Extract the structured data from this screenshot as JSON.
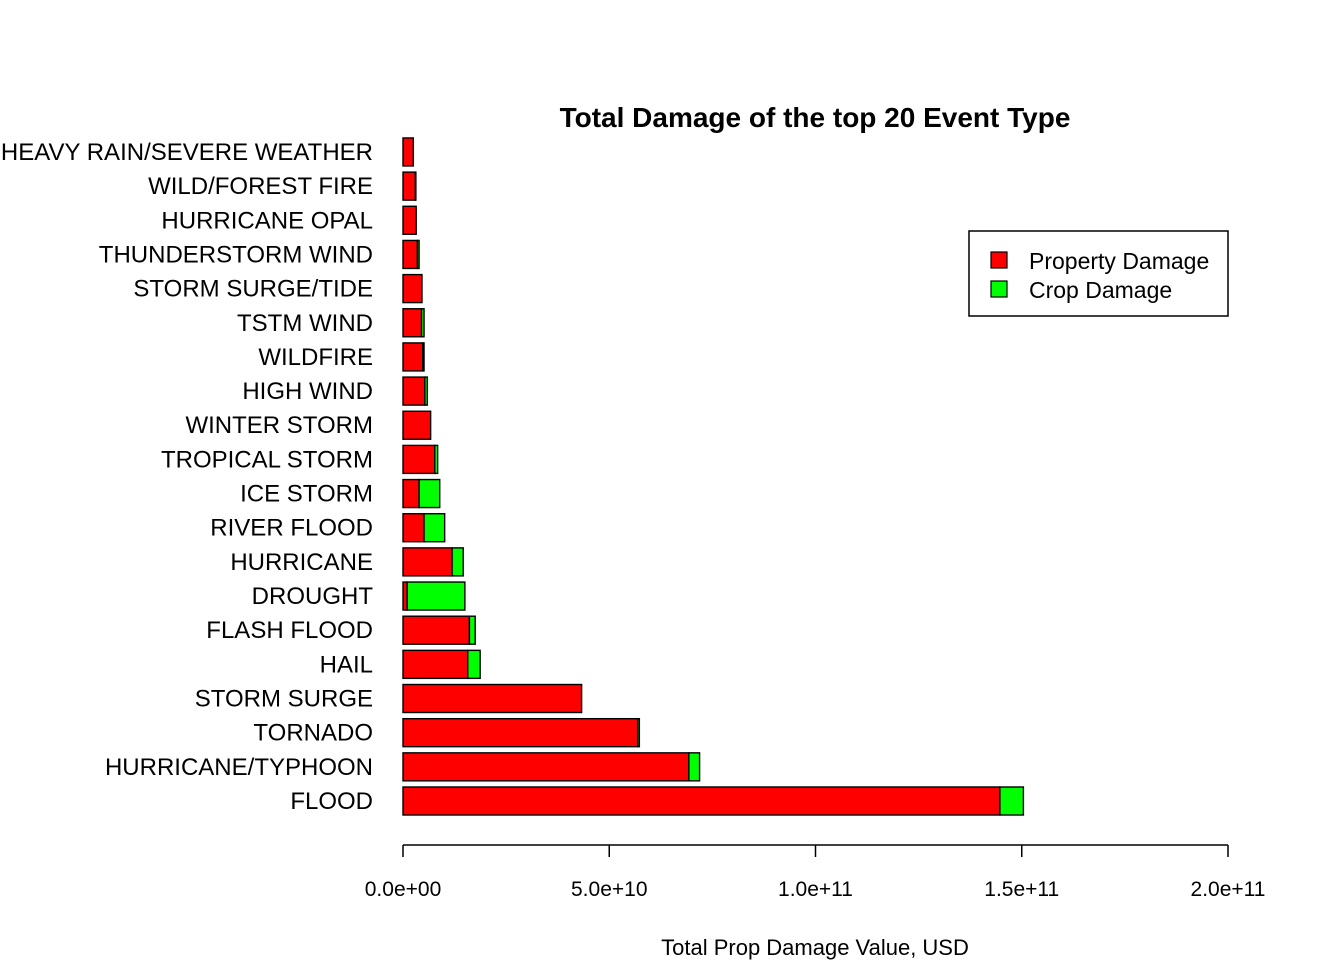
{
  "chart_data": {
    "type": "bar",
    "orientation": "horizontal",
    "stacked": true,
    "title": "Total Damage of the top 20 Event Type",
    "xlabel": "Total Prop Damage Value, USD",
    "ylabel": "",
    "xlim": [
      0,
      200000000000
    ],
    "xticks": [
      0,
      50000000000,
      100000000000,
      150000000000,
      200000000000
    ],
    "xtick_labels": [
      "0.0e+00",
      "5.0e+10",
      "1.0e+11",
      "1.5e+11",
      "2.0e+11"
    ],
    "grid": false,
    "legend_position": "top-right",
    "categories": [
      "FLOOD",
      "HURRICANE/TYPHOON",
      "TORNADO",
      "STORM SURGE",
      "HAIL",
      "FLASH FLOOD",
      "DROUGHT",
      "HURRICANE",
      "RIVER FLOOD",
      "ICE STORM",
      "TROPICAL STORM",
      "WINTER STORM",
      "HIGH WIND",
      "WILDFIRE",
      "TSTM WIND",
      "STORM SURGE/TIDE",
      "THUNDERSTORM WIND",
      "HURRICANE OPAL",
      "WILD/FOREST FIRE",
      "HEAVY RAIN/SEVERE WEATHER"
    ],
    "series": [
      {
        "name": "Property Damage",
        "color": "#ff0000",
        "values": [
          144700000000,
          69300000000,
          56900000000,
          43300000000,
          15700000000,
          16100000000,
          1000000000,
          11900000000,
          5100000000,
          3900000000,
          7700000000,
          6700000000,
          5300000000,
          4800000000,
          4500000000,
          4600000000,
          3500000000,
          3200000000,
          3000000000,
          2500000000
        ]
      },
      {
        "name": "Crop Damage",
        "color": "#00ff00",
        "values": [
          5700000000,
          2600000000,
          400000000,
          0,
          3000000000,
          1400000000,
          14000000000,
          2700000000,
          5000000000,
          5000000000,
          700000000,
          0,
          600000000,
          300000000,
          600000000,
          0,
          400000000,
          0,
          100000000,
          0
        ]
      }
    ]
  }
}
